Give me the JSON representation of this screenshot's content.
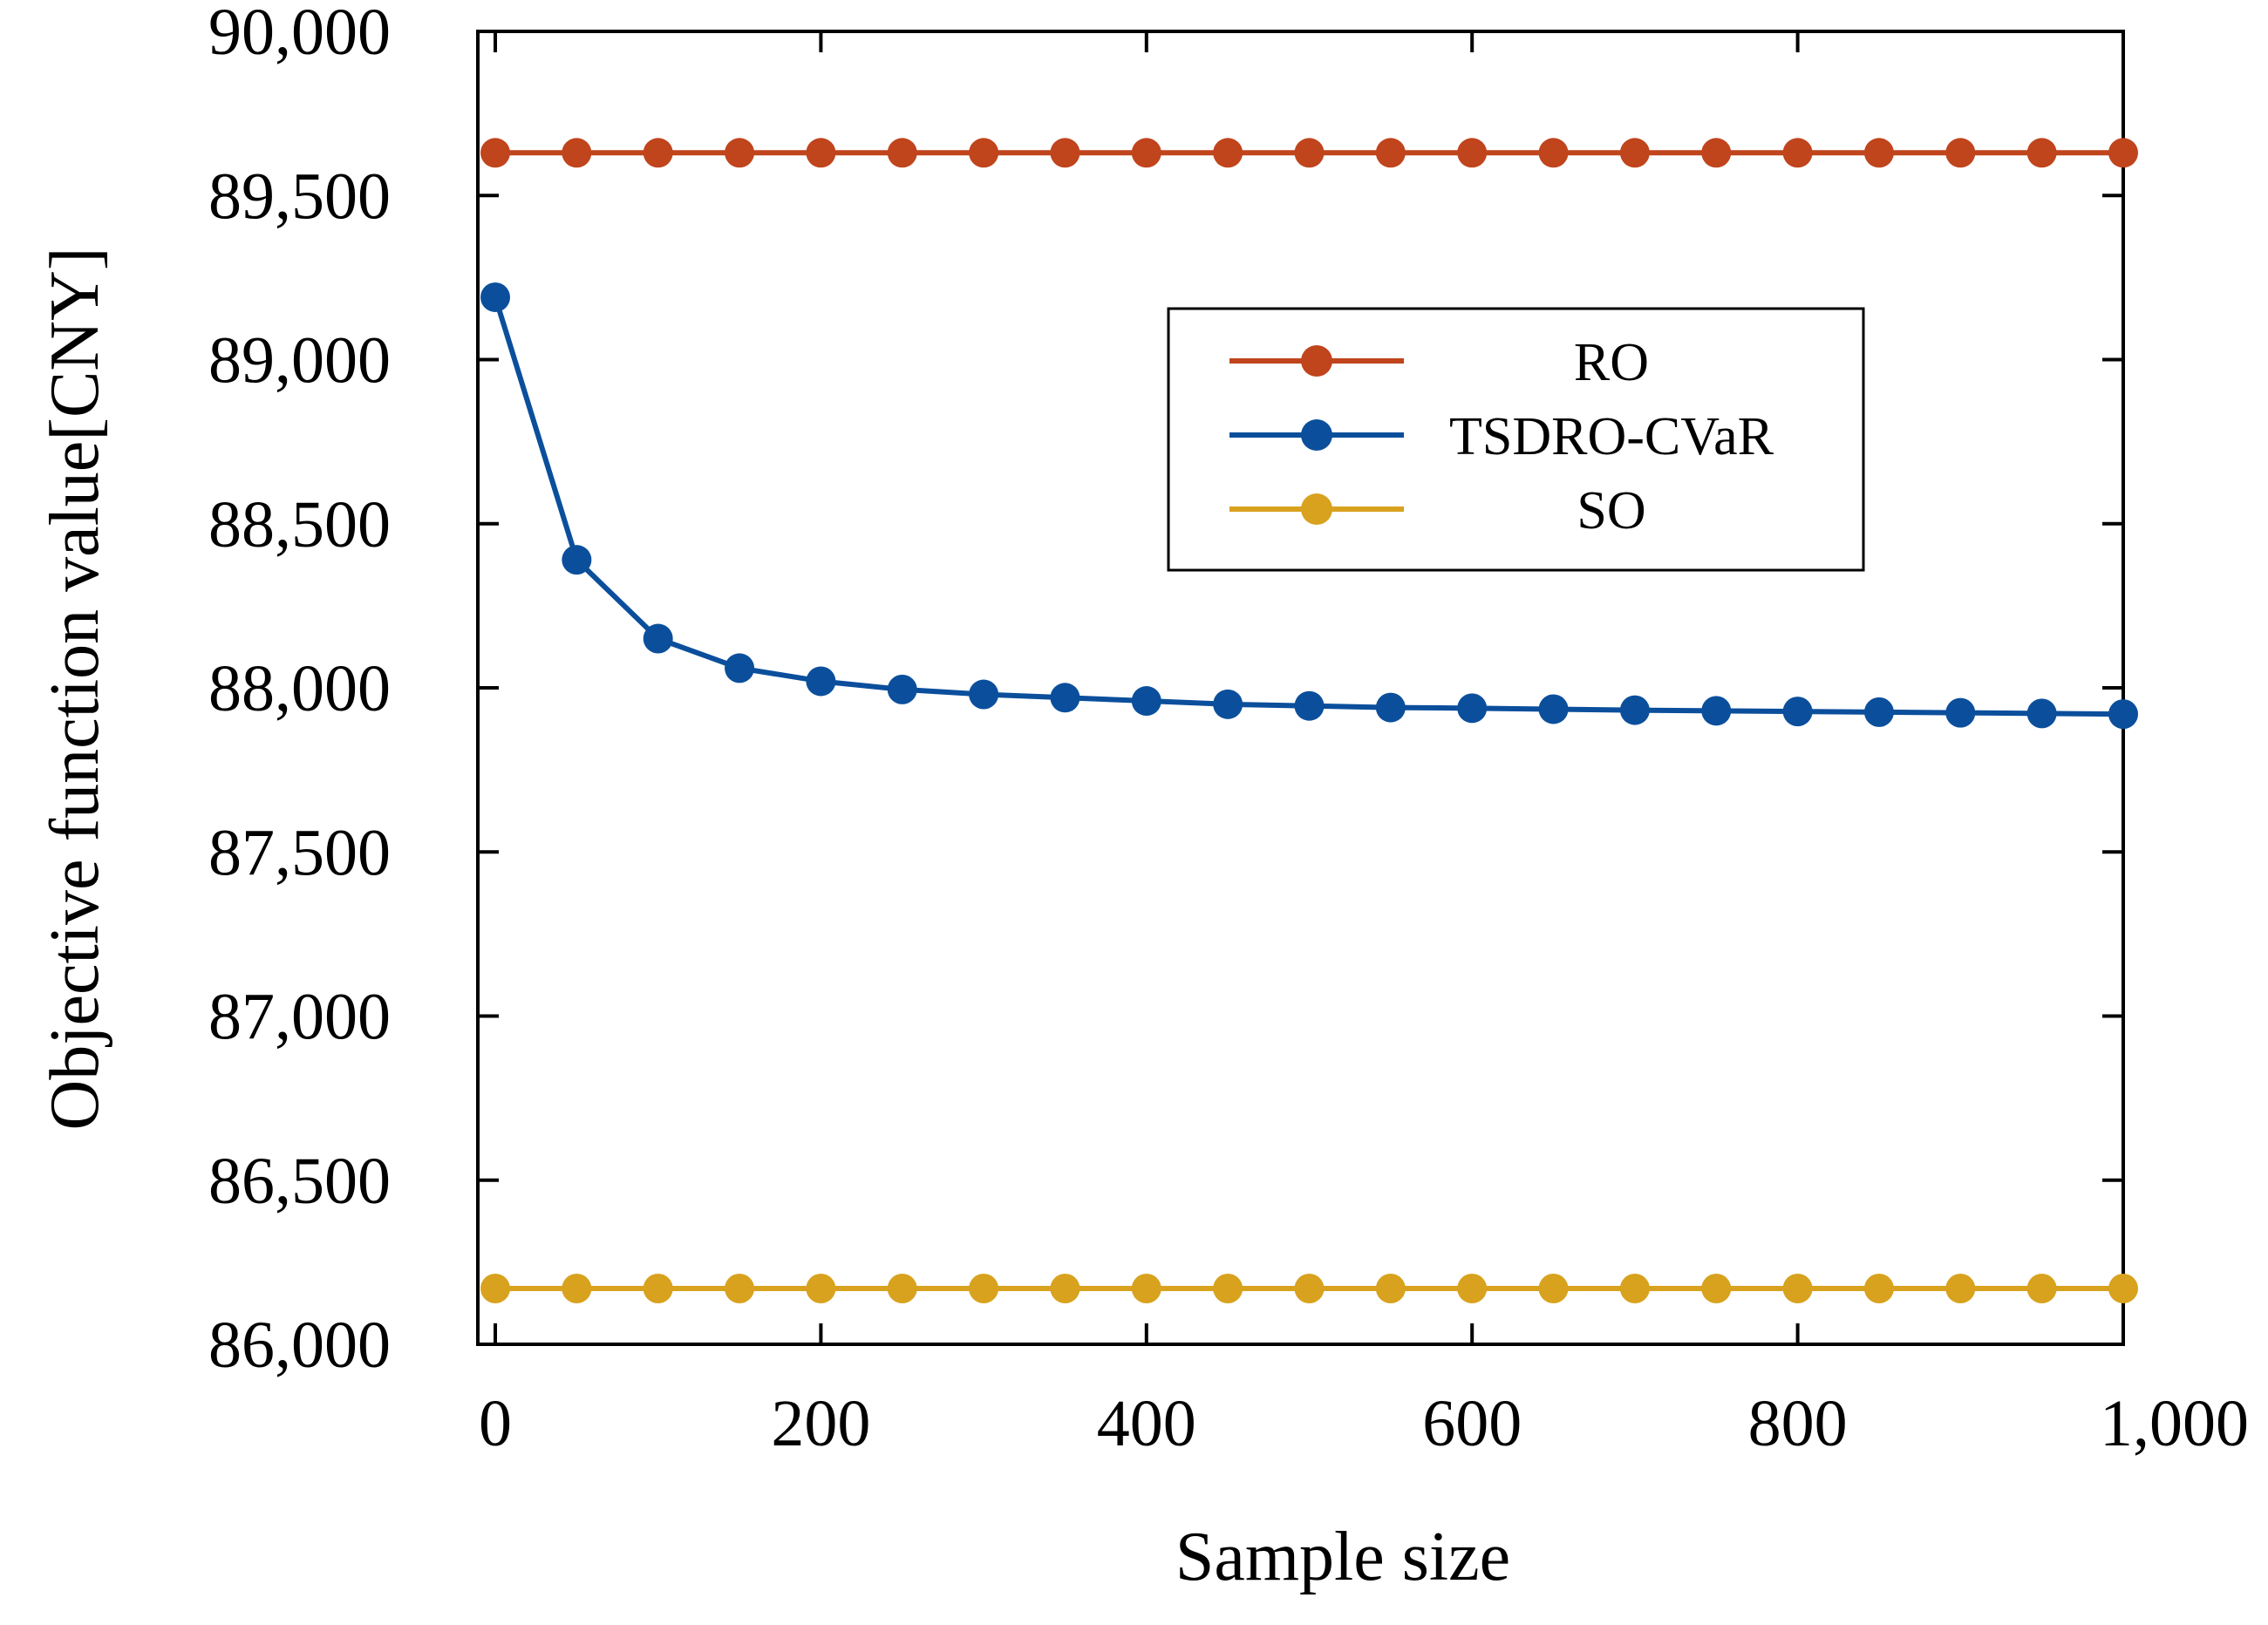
{
  "colors": {
    "ro": "#C0441C",
    "tsdro": "#0B4F9C",
    "so": "#D8A21E",
    "axis": "#000000",
    "background": "#FFFFFF"
  },
  "chart_data": {
    "type": "line",
    "title": "",
    "xlabel": "Sample size",
    "ylabel": "Objective function value[CNY]",
    "xlim": [
      0,
      1000
    ],
    "ylim": [
      86000,
      90000
    ],
    "x_ticks": [
      0,
      200,
      400,
      600,
      800,
      1000
    ],
    "x_tick_labels": [
      "0",
      "200",
      "400",
      "600",
      "800",
      "1,000"
    ],
    "y_ticks": [
      86000,
      86500,
      87000,
      87500,
      88000,
      88500,
      89000,
      89500,
      90000
    ],
    "y_tick_labels": [
      "86,000",
      "86,500",
      "87,000",
      "87,500",
      "88,000",
      "88,500",
      "89,000",
      "89,500",
      "90,000"
    ],
    "grid": false,
    "legend_position": "upper-right-inside",
    "x": [
      0,
      50,
      100,
      150,
      200,
      250,
      300,
      350,
      400,
      450,
      500,
      550,
      600,
      650,
      700,
      750,
      800,
      850,
      900,
      950,
      1000
    ],
    "series": [
      {
        "name": "RO",
        "color": "#C0441C",
        "values": [
          89630,
          89630,
          89630,
          89630,
          89630,
          89630,
          89630,
          89630,
          89630,
          89630,
          89630,
          89630,
          89630,
          89630,
          89630,
          89630,
          89630,
          89630,
          89630,
          89630,
          89630
        ]
      },
      {
        "name": "TSDRO-CVaR",
        "color": "#0B4F9C",
        "values": [
          89190,
          88390,
          88150,
          88060,
          88020,
          87995,
          87980,
          87970,
          87960,
          87950,
          87945,
          87940,
          87938,
          87935,
          87932,
          87930,
          87928,
          87926,
          87924,
          87922,
          87920
        ]
      },
      {
        "name": "SO",
        "color": "#D8A21E",
        "values": [
          86170,
          86170,
          86170,
          86170,
          86170,
          86170,
          86170,
          86170,
          86170,
          86170,
          86170,
          86170,
          86170,
          86170,
          86170,
          86170,
          86170,
          86170,
          86170,
          86170,
          86170
        ]
      }
    ]
  }
}
